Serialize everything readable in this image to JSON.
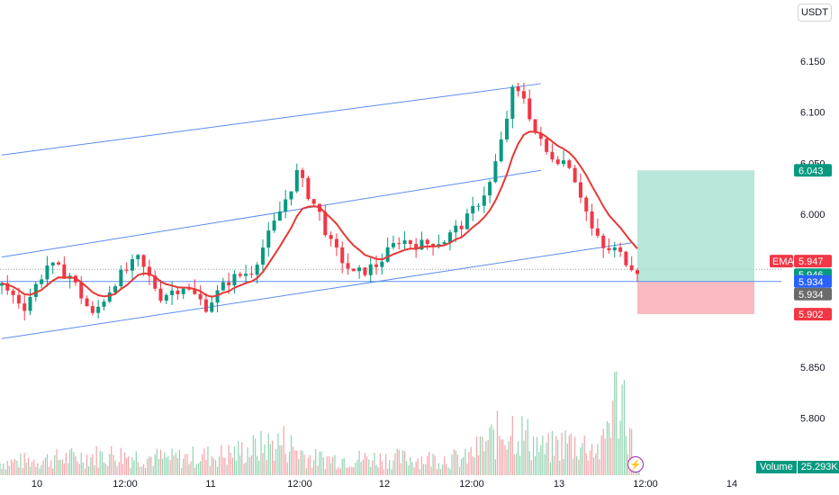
{
  "quote_currency": "USDT",
  "indicator_label": "EMA",
  "volume_label": "Volume",
  "volume_value": "25.293K",
  "colors": {
    "up": "#089981",
    "down": "#f23645",
    "ema": "#e53935",
    "channel": "#5b8def",
    "volume_up": "#8fd4b0",
    "volume_down": "#f5a3a8",
    "target_zone": "#9fdecf",
    "stop_zone": "#f7a8b0",
    "price_badge": "#2962ff",
    "last_badge": "#6b6b6b"
  },
  "icons": {
    "lightning": "lightning-icon"
  },
  "chart_data": {
    "type": "candlestick",
    "x_ticks": [
      "10",
      "12:00",
      "11",
      "12:00",
      "12",
      "12:00",
      "13",
      "12:00",
      "14"
    ],
    "y_ticks": [
      "6.150",
      "6.100",
      "6.050",
      "6.000",
      "5.850",
      "5.800"
    ],
    "ylim": [
      5.755,
      6.185
    ],
    "price_labels": {
      "target": "6.043",
      "ema_value": "5.947",
      "last_close": "5.946",
      "entry": "5.934",
      "mark": "5.934",
      "stop": "5.902"
    },
    "levels": {
      "target": 6.043,
      "ema": 5.947,
      "close": 5.946,
      "entry": 5.934,
      "stop": 5.902
    },
    "anchors": [
      [
        0,
        5.93
      ],
      [
        4,
        5.91
      ],
      [
        8,
        5.95
      ],
      [
        12,
        5.94
      ],
      [
        16,
        5.9
      ],
      [
        20,
        5.935
      ],
      [
        24,
        5.955
      ],
      [
        28,
        5.92
      ],
      [
        32,
        5.93
      ],
      [
        36,
        5.91
      ],
      [
        40,
        5.935
      ],
      [
        44,
        5.945
      ],
      [
        48,
        5.99
      ],
      [
        52,
        6.04
      ],
      [
        56,
        6.0
      ],
      [
        58,
        5.97
      ],
      [
        62,
        5.94
      ],
      [
        66,
        5.95
      ],
      [
        70,
        5.975
      ],
      [
        74,
        5.97
      ],
      [
        78,
        5.975
      ],
      [
        82,
        5.995
      ],
      [
        86,
        6.03
      ],
      [
        88,
        6.07
      ],
      [
        90,
        6.12
      ],
      [
        92,
        6.115
      ],
      [
        94,
        6.08
      ],
      [
        96,
        6.06
      ],
      [
        98,
        6.055
      ],
      [
        100,
        6.05
      ],
      [
        102,
        6.02
      ],
      [
        104,
        5.985
      ],
      [
        106,
        5.965
      ],
      [
        108,
        5.965
      ],
      [
        110,
        5.955
      ],
      [
        112,
        5.946
      ]
    ],
    "volume_anchors": [
      [
        0,
        0.15
      ],
      [
        10,
        0.2
      ],
      [
        20,
        0.25
      ],
      [
        30,
        0.2
      ],
      [
        40,
        0.25
      ],
      [
        50,
        0.4
      ],
      [
        55,
        0.2
      ],
      [
        70,
        0.2
      ],
      [
        82,
        0.2
      ],
      [
        88,
        0.5
      ],
      [
        90,
        0.6
      ],
      [
        92,
        0.5
      ],
      [
        96,
        0.3
      ],
      [
        100,
        0.4
      ],
      [
        104,
        0.35
      ],
      [
        106,
        0.3
      ],
      [
        108,
        0.9
      ],
      [
        110,
        0.95
      ],
      [
        112,
        0.1
      ]
    ],
    "channels": [
      {
        "name": "",
        "x": [
          0,
          95
        ],
        "y": [
          6.058,
          6.128
        ]
      },
      {
        "name": "",
        "x": [
          0,
          95
        ],
        "y": [
          5.958,
          6.043
        ]
      },
      {
        "name": "",
        "x": [
          0,
          111
        ],
        "y": [
          5.878,
          5.972
        ]
      }
    ]
  }
}
